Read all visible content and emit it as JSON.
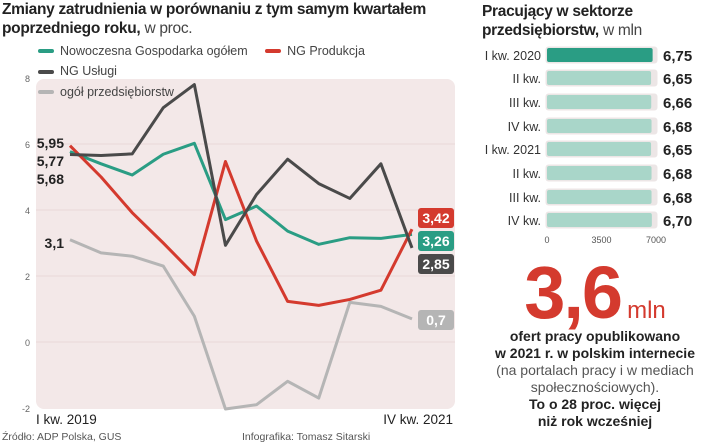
{
  "left": {
    "title": "Zmiany zatrudnienia w porównaniu z tym samym kwartałem poprzedniego roku,",
    "title_unit": "w proc."
  },
  "right": {
    "title": "Pracujący w sektorze przedsiębiorstw,",
    "title_unit": "w mln"
  },
  "highlight": {
    "value": "3,6",
    "unit": "mln",
    "line1": "ofert pracy opublikowano",
    "line2": "w 2021 r. w polskim internecie",
    "line3": "(na portalach pracy i w mediach",
    "line4": "społecznościowych).",
    "line5": "To o 28 proc. więcej",
    "line6": "niż rok wcześniej"
  },
  "footer": {
    "source": "Źródło: ADP Polska, GUS",
    "credit": "Infografika: Tomasz Sitarski"
  },
  "chart_data": [
    {
      "type": "line",
      "xlabel": "",
      "ylabel": "",
      "ylim": [
        -2,
        8
      ],
      "yticks": [
        "-2",
        "0",
        "2",
        "4",
        "6",
        "8"
      ],
      "x_start_label": "I kw. 2019",
      "x_end_label": "IV kw. 2021",
      "grid": true,
      "legend_position": "top",
      "series": [
        {
          "name": "Nowoczesna Gospodarka ogółem",
          "color": "#2a9d84",
          "values": [
            5.77,
            5.4,
            5.06,
            5.69,
            6.02,
            3.71,
            4.12,
            3.36,
            2.96,
            3.16,
            3.14,
            3.26
          ],
          "start_label": "5,77",
          "end_label": "3,26"
        },
        {
          "name": "NG Produkcja",
          "color": "#d43a2e",
          "values": [
            5.95,
            5.0,
            3.92,
            3.0,
            2.04,
            5.47,
            3.06,
            1.23,
            1.11,
            1.29,
            1.57,
            3.42
          ],
          "start_label": "5,95",
          "end_label": "3,42"
        },
        {
          "name": "NG Usługi",
          "color": "#4a4a4a",
          "values": [
            5.68,
            5.65,
            5.7,
            7.1,
            7.8,
            2.93,
            4.47,
            5.54,
            4.8,
            4.35,
            5.4,
            2.85
          ],
          "start_label": "5,68",
          "end_label": "2,85"
        },
        {
          "name": "ogół przedsiębiorstw",
          "color": "#b5b5b5",
          "values": [
            3.1,
            2.7,
            2.6,
            2.3,
            0.78,
            -2.03,
            -1.9,
            -1.19,
            -1.7,
            1.2,
            1.08,
            0.7
          ],
          "start_label": "3,1",
          "end_label": "0,7"
        }
      ]
    },
    {
      "type": "bar",
      "orientation": "horizontal",
      "categories": [
        "I kw. 2020",
        "II kw.",
        "III kw.",
        "IV kw.",
        "I kw. 2021",
        "II kw.",
        "III kw.",
        "IV kw."
      ],
      "values": [
        6.75,
        6.65,
        6.66,
        6.68,
        6.65,
        6.68,
        6.68,
        6.7
      ],
      "value_labels": [
        "6,75",
        "6,65",
        "6,66",
        "6,68",
        "6,65",
        "6,68",
        "6,68",
        "6,70"
      ],
      "xlim": [
        0,
        7000
      ],
      "xticks": [
        "0",
        "3500",
        "7000"
      ],
      "highlight_color": "#2a9d84",
      "bar_color": "#a9d6c9"
    }
  ]
}
